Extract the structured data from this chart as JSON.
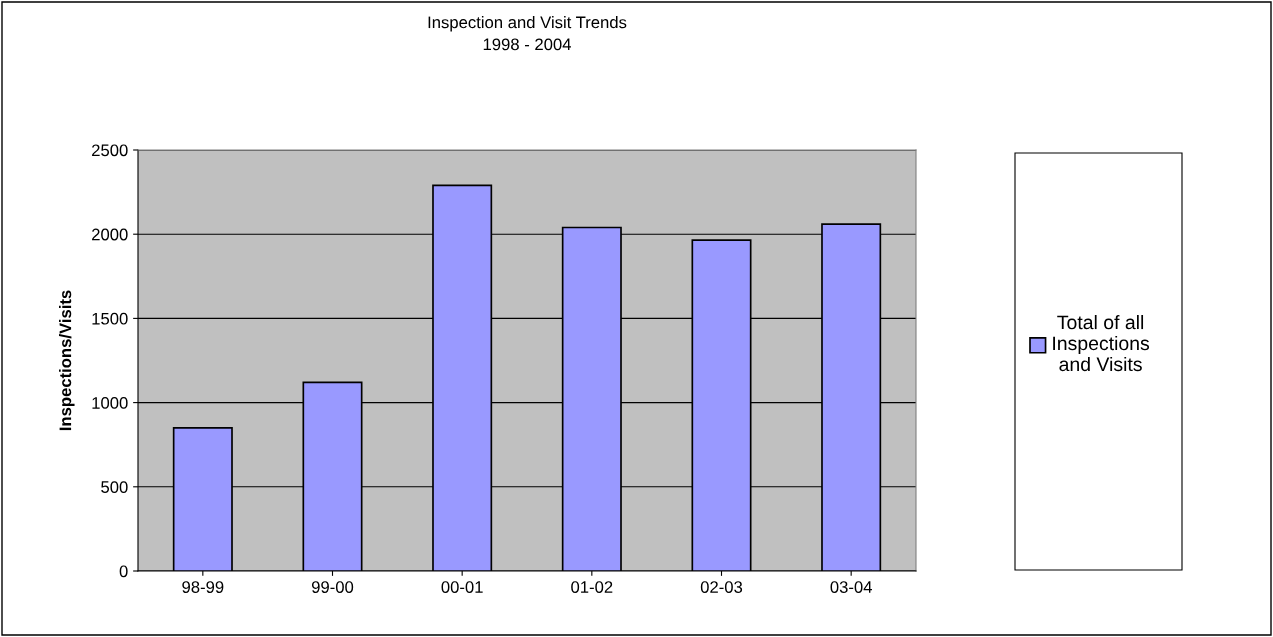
{
  "chart_data": {
    "type": "bar",
    "title": "Inspection and Visit Trends",
    "subtitle": "1998 - 2004",
    "ylabel": "Inspections/Visits",
    "categories": [
      "98-99",
      "99-00",
      "00-01",
      "01-02",
      "02-03",
      "03-04"
    ],
    "series": [
      {
        "name": "Total of all\nInspections\nand Visits",
        "color": "#9999ff",
        "values": [
          850,
          1120,
          2290,
          2040,
          1965,
          2060
        ]
      }
    ],
    "ylim": [
      0,
      2500
    ],
    "yticks": [
      0,
      500,
      1000,
      1500,
      2000,
      2500
    ],
    "grid": "y",
    "legend": "right"
  }
}
